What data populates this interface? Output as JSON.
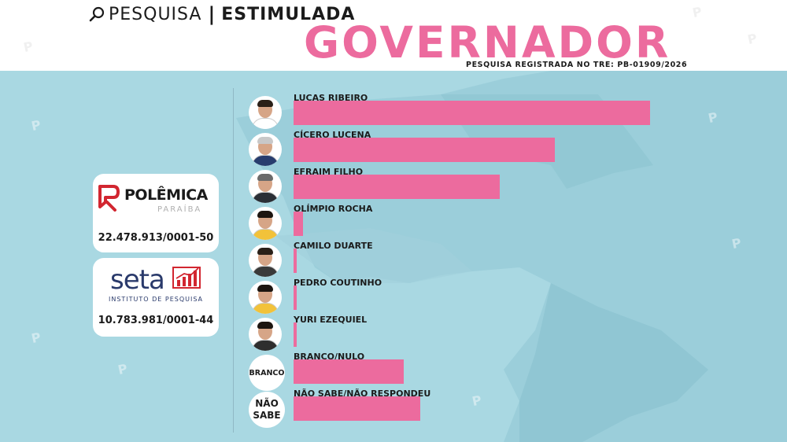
{
  "header": {
    "pesquisa": "PESQUISA",
    "separator": "|",
    "estimulada": "ESTIMULADA",
    "title": "GOVERNADOR",
    "registro": "PESQUISA REGISTRADA NO TRE: PB-01909/2026",
    "search_icon": "search-icon"
  },
  "sponsors": [
    {
      "name": "POLÊMICA",
      "subtitle": "PARAÍBA",
      "cnpj": "22.478.913/0001-50",
      "icon": "polemica-logo-icon",
      "color": "#d22630"
    },
    {
      "name": "seta",
      "subtitle": "INSTITUTO DE PESQUISA",
      "cnpj": "10.783.981/0001-44",
      "icon": "seta-chart-icon",
      "color": "#d22630"
    }
  ],
  "colors": {
    "bar": "#ec6b9e",
    "background": "#a9d8e2",
    "header_bg": "#ffffff"
  },
  "chart_data": {
    "type": "bar",
    "orientation": "horizontal",
    "title": "GOVERNADOR",
    "categories": [
      "LUCAS RIBEIRO",
      "CÍCERO LUCENA",
      "EFRAIM FILHO",
      "OLÍMPIO ROCHA",
      "CAMILO DUARTE",
      "PEDRO COUTINHO",
      "YURI EZEQUIEL",
      "BRANCO/NULO",
      "NÃO SABE/NÃO RESPONDEU"
    ],
    "values": [
      45.4,
      33.3,
      26.3,
      1.2,
      0.4,
      0.4,
      0.4,
      14.0,
      16.1
    ],
    "value_labels_shown": false,
    "xlim": [
      0,
      45.4
    ],
    "grid": false,
    "legend": "none",
    "avatar_labels": [
      "",
      "",
      "",
      "",
      "",
      "",
      "",
      "BRANCO",
      "NÃO SABE"
    ]
  }
}
